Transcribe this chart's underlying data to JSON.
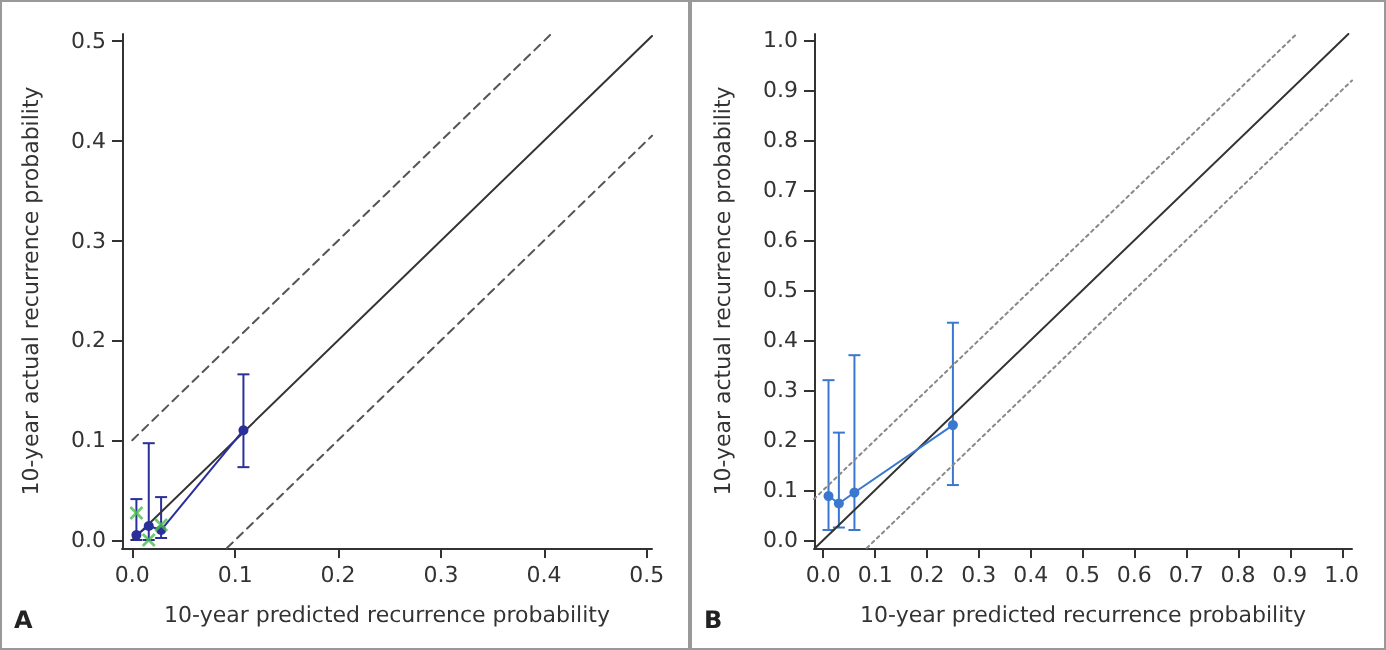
{
  "chart_data": [
    {
      "type": "line",
      "xlabel": "10-year predicted recurrence probability",
      "ylabel": "10-year actual recurrence probability",
      "annotations": [
        "A"
      ],
      "xlim": [
        -0.01,
        0.505
      ],
      "ylim": [
        -0.008,
        0.507
      ],
      "xticks": [
        {
          "value": 0,
          "label": "0.0"
        },
        {
          "value": 0.1,
          "label": "0.1"
        },
        {
          "value": 0.2,
          "label": "0.2"
        },
        {
          "value": 0.3,
          "label": "0.3"
        },
        {
          "value": 0.4,
          "label": "0.4"
        },
        {
          "value": 0.5,
          "label": "0.5"
        }
      ],
      "yticks": [
        {
          "value": 0,
          "label": "0.0"
        },
        {
          "value": 0.1,
          "label": "0.1"
        },
        {
          "value": 0.2,
          "label": "0.2"
        },
        {
          "value": 0.3,
          "label": "0.3"
        },
        {
          "value": 0.4,
          "label": "0.4"
        },
        {
          "value": 0.5,
          "label": "0.5"
        }
      ],
      "grid": false,
      "series": [
        {
          "color": "#333333",
          "line_style": "solid",
          "marker": "none",
          "x": [
            0,
            0.505
          ],
          "values": [
            0,
            0.505
          ]
        },
        {
          "color": "#555555",
          "line_style": "dashed",
          "marker": "none",
          "x": [
            0,
            0.407
          ],
          "values": [
            0.1,
            0.507
          ]
        },
        {
          "color": "#555555",
          "line_style": "dashed",
          "marker": "none",
          "x": [
            0.092,
            0.505
          ],
          "values": [
            -0.008,
            0.405
          ]
        },
        {
          "color": "#2a2f9a",
          "line_style": "solid",
          "marker": "circle",
          "x": [
            0.004,
            0.016,
            0.028,
            0.108
          ],
          "values": [
            0.005,
            0.014,
            0.01,
            0.11
          ],
          "errors": [
            [
              0.0,
              0.041
            ],
            [
              0.0,
              0.097
            ],
            [
              0.002,
              0.043
            ],
            [
              0.073,
              0.166
            ]
          ]
        },
        {
          "type": "scatter",
          "color": "#4cbf4c",
          "marker": "cross",
          "x": [
            0.004,
            0.016,
            0.028
          ],
          "values": [
            0.027,
            0.0,
            0.015
          ]
        }
      ]
    },
    {
      "type": "line",
      "xlabel": "10-year predicted recurrence probability",
      "ylabel": "10-year actual recurrence probability",
      "annotations": [
        "B"
      ],
      "xlim": [
        -0.018,
        1.02
      ],
      "ylim": [
        -0.016,
        1.013
      ],
      "xticks": [
        {
          "value": 0,
          "label": "0.0"
        },
        0.1,
        0.2,
        0.3,
        0.4,
        0.5,
        0.6,
        0.7,
        0.8,
        0.9,
        {
          "value": 1,
          "label": "1.0"
        }
      ],
      "yticks": [
        {
          "value": 0,
          "label": "0.0"
        },
        0.1,
        0.2,
        0.3,
        0.4,
        0.5,
        0.6,
        0.7,
        0.8,
        0.9,
        {
          "value": 1,
          "label": "1.0"
        }
      ],
      "grid": false,
      "series": [
        {
          "color": "#333333",
          "line_style": "solid",
          "marker": "none",
          "x": [
            -0.016,
            1.013
          ],
          "values": [
            -0.016,
            1.013
          ]
        },
        {
          "color": "#888888",
          "line_style": "dotted",
          "marker": "none",
          "x": [
            -0.018,
            0.913
          ],
          "values": [
            0.082,
            1.013
          ]
        },
        {
          "color": "#888888",
          "line_style": "dotted",
          "marker": "none",
          "x": [
            0.084,
            1.02
          ],
          "values": [
            -0.016,
            0.92
          ]
        },
        {
          "color": "#3a78d0",
          "line_style": "solid",
          "marker": "circle",
          "x": [
            0.01,
            0.03,
            0.06,
            0.25
          ],
          "values": [
            0.088,
            0.073,
            0.095,
            0.23
          ],
          "errors": [
            [
              0.02,
              0.32
            ],
            [
              0.025,
              0.215
            ],
            [
              0.02,
              0.37
            ],
            [
              0.11,
              0.435
            ]
          ]
        }
      ]
    }
  ]
}
